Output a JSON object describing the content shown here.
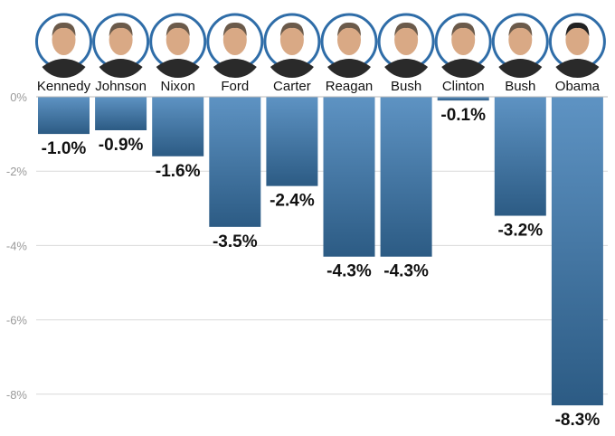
{
  "chart_data": {
    "type": "bar",
    "categories": [
      "Kennedy",
      "Johnson",
      "Nixon",
      "Ford",
      "Carter",
      "Reagan",
      "Bush",
      "Clinton",
      "Bush",
      "Obama"
    ],
    "values": [
      -1.0,
      -0.9,
      -1.6,
      -3.5,
      -2.4,
      -4.3,
      -4.3,
      -0.1,
      -3.2,
      -8.3
    ],
    "value_labels": [
      "-1.0%",
      "-0.9%",
      "-1.6%",
      "-3.5%",
      "-2.4%",
      "-4.3%",
      "-4.3%",
      "-0.1%",
      "-3.2%",
      "-8.3%"
    ],
    "yticks": [
      0,
      -2,
      -4,
      -6,
      -8
    ],
    "ytick_labels": [
      "0%",
      "-2%",
      "-4%",
      "-6%",
      "-8%"
    ],
    "ylim": [
      0,
      -8.3
    ],
    "grid": true,
    "colors": {
      "bar_top": "#5e93c3",
      "bar_bottom": "#2c5b84",
      "grid": "#d9d9d9",
      "portrait_ring": "#2f6da8"
    },
    "category_icons": [
      "president-portrait"
    ]
  }
}
